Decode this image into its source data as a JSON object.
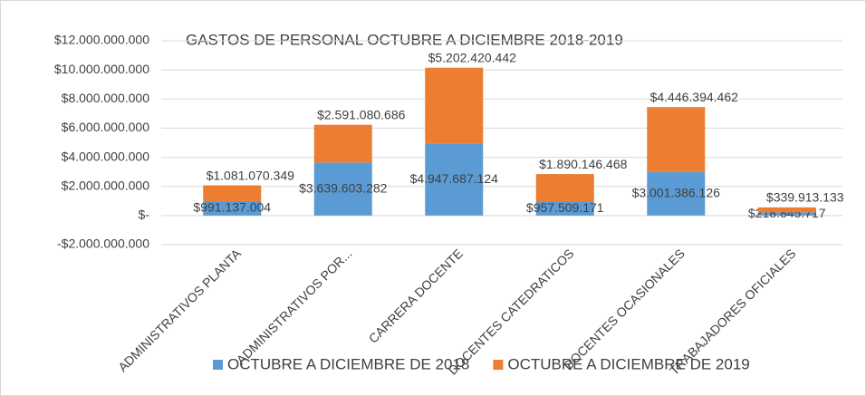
{
  "chart_data": {
    "type": "stacked_bar",
    "title": "GASTOS DE PERSONAL OCTUBRE A DICIEMBRE 2018-2019",
    "categories": [
      "ADMINISTRATIVOS PLANTA",
      "ADMINISTRATIVOS POR...",
      "CARRERA DOCENTE",
      "DOCENTES CATEDRATICOS",
      "DOCENTES OCASIONALES",
      "TRABAJADORES OFICIALES"
    ],
    "series": [
      {
        "name": "OCTUBRE A DICIEMBRE DE 2018",
        "color": "#5b9bd5",
        "values": [
          991137004,
          3639603282,
          4947687124,
          957509171,
          3001386126,
          218845717
        ],
        "value_labels": [
          "$991.137.004",
          "$3.639.603.282",
          "$4.947.687.124",
          "$957.509.171",
          "$3.001.386.126",
          "$218.845.717"
        ]
      },
      {
        "name": "OCTUBRE A DICIEMBRE DE 2019",
        "color": "#ed7d31",
        "values": [
          1081070349,
          2591080686,
          5202420442,
          1890146468,
          4446394462,
          339913133
        ],
        "value_labels": [
          "$1.081.070.349",
          "$2.591.080.686",
          "$5.202.420.442",
          "$1.890.146.468",
          "$4.446.394.462",
          "$339.913.133"
        ]
      }
    ],
    "ylim": [
      -2000000000,
      12000000000
    ],
    "yticks": [
      {
        "value": -2000000000,
        "label": "-$2.000.000.000"
      },
      {
        "value": 0,
        "label": "$-"
      },
      {
        "value": 2000000000,
        "label": "$2.000.000.000"
      },
      {
        "value": 4000000000,
        "label": "$4.000.000.000"
      },
      {
        "value": 6000000000,
        "label": "$6.000.000.000"
      },
      {
        "value": 8000000000,
        "label": "$8.000.000.000"
      },
      {
        "value": 10000000000,
        "label": "$10.000.000.000"
      },
      {
        "value": 12000000000,
        "label": "$12.000.000.000"
      }
    ],
    "grid": true,
    "legend": "bottom"
  }
}
